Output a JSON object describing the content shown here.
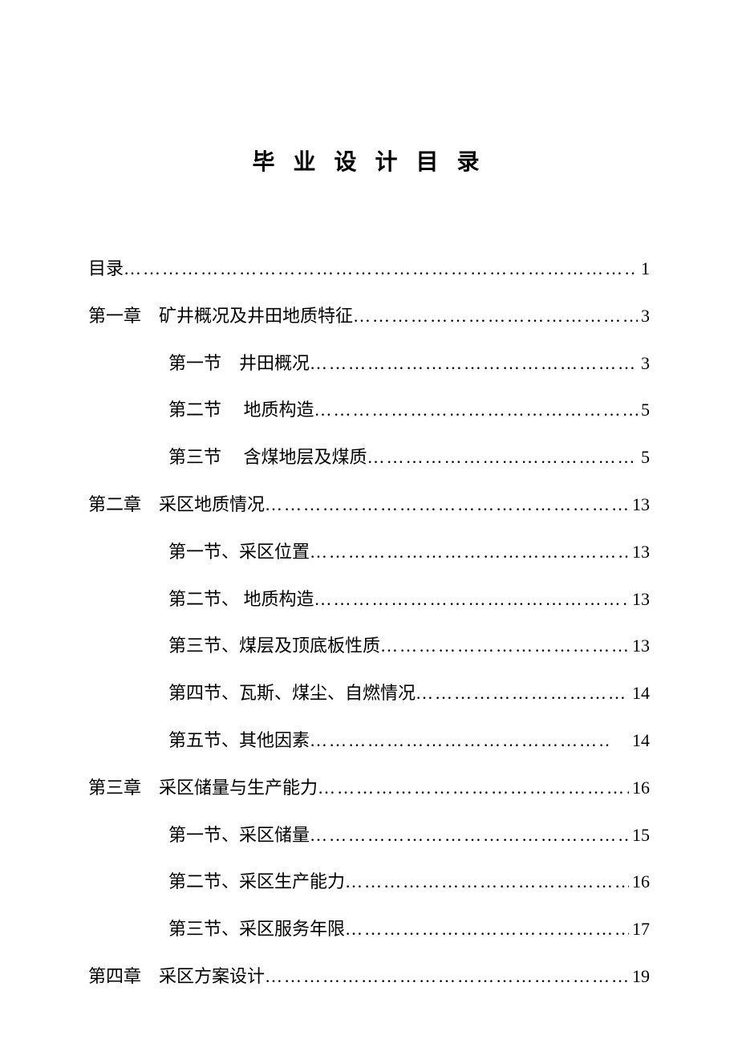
{
  "title": "毕 业 设 计 目 录",
  "text_color": "#000000",
  "background_color": "#ffffff",
  "title_fontsize": 28,
  "body_fontsize": 22,
  "entries": [
    {
      "label": "目录",
      "page": " 1",
      "indent": false
    },
    {
      "label": "第一章　矿井概况及井田地质特征",
      "page": "3",
      "indent": false
    },
    {
      "label": "第一节　井田概况",
      "page": " 3",
      "indent": true
    },
    {
      "label": "第二节　 地质构造",
      "page": " 5",
      "indent": true
    },
    {
      "label": "第三节　 含煤地层及煤质",
      "page": "5",
      "indent": true
    },
    {
      "label": "第二章　采区地质情况",
      "page": "13",
      "indent": false
    },
    {
      "label": "第一节、采区位置",
      "page": "13",
      "indent": true
    },
    {
      "label": "第二节、 地质构造",
      "page": " 13",
      "indent": true
    },
    {
      "label": "第三节、煤层及顶底板性质",
      "page": "13",
      "indent": true
    },
    {
      "label": "第四节、瓦斯、煤尘、自燃情况",
      "page": "14",
      "indent": true
    },
    {
      "label": "第五节、其他因素",
      "page": "　14",
      "indent": true
    },
    {
      "label": "第三章　采区储量与生产能力",
      "page": "16",
      "indent": false
    },
    {
      "label": "第一节、采区储量",
      "page": " 15",
      "indent": true
    },
    {
      "label": "第二节、采区生产能力",
      "page": " 16",
      "indent": true
    },
    {
      "label": "第三节、采区服务年限",
      "page": "17",
      "indent": true
    },
    {
      "label": "第四章　采区方案设计",
      "page": " 19",
      "indent": false
    }
  ],
  "dots": "…………………………………………………………………………"
}
